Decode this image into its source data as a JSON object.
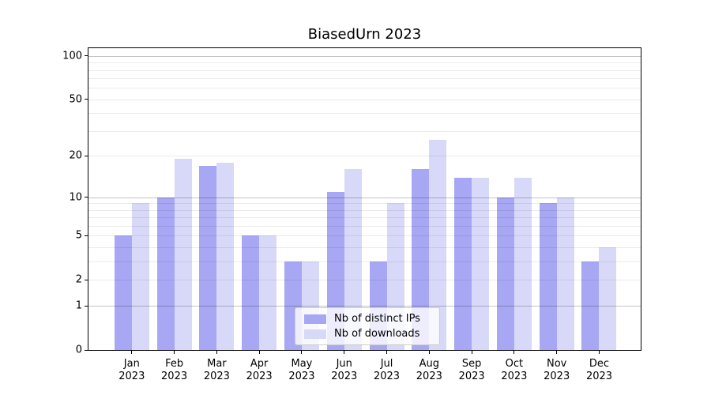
{
  "title": "BiasedUrn 2023",
  "chart_data": {
    "type": "bar",
    "title": "BiasedUrn 2023",
    "categories": [
      "Jan 2023",
      "Feb 2023",
      "Mar 2023",
      "Apr 2023",
      "May 2023",
      "Jun 2023",
      "Jul 2023",
      "Aug 2023",
      "Sep 2023",
      "Oct 2023",
      "Nov 2023",
      "Dec 2023"
    ],
    "series": [
      {
        "name": "Nb of distinct IPs",
        "color": "#a7a7f4",
        "values": [
          5,
          10,
          17,
          5,
          3,
          11,
          3,
          16,
          14,
          10,
          9,
          3
        ]
      },
      {
        "name": "Nb of downloads",
        "color": "#d8d8f9",
        "values": [
          9,
          19,
          18,
          5,
          3,
          16,
          9,
          26,
          14,
          14,
          10,
          4
        ]
      }
    ],
    "yscale": "log1p",
    "ylim": [
      0,
      113
    ],
    "yticks": [
      0,
      1,
      2,
      5,
      10,
      20,
      50,
      100
    ],
    "major_gridlines": [
      1,
      10,
      100
    ],
    "minor_gridlines": [
      2,
      3,
      4,
      5,
      6,
      7,
      8,
      9,
      20,
      30,
      40,
      50,
      60,
      70,
      80,
      90
    ],
    "grid": true,
    "legend_position": "lower center",
    "colors": {
      "grid_major": "rgba(0,0,0,0.23)",
      "grid_minor": "rgba(0,0,0,0.08)",
      "axis": "#000000",
      "background": "#ffffff"
    }
  }
}
